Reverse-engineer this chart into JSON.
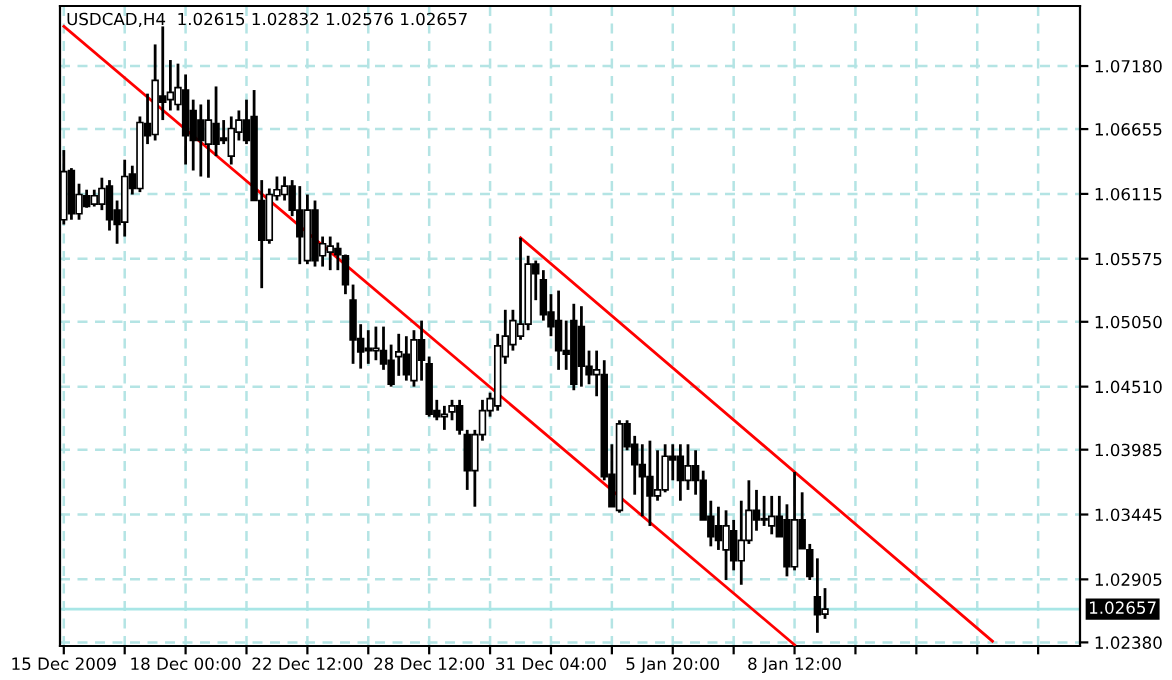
{
  "chart_data": {
    "type": "candlestick",
    "title": "USDCAD,H4  1.02615 1.02832 1.02576 1.02657",
    "categories": [
      "15 Dec 2009",
      null,
      null,
      null,
      null,
      null,
      null,
      null,
      null,
      null,
      null,
      null,
      null,
      null,
      null,
      null,
      "18 Dec 00:00",
      null,
      null,
      null,
      null,
      null,
      null,
      null,
      null,
      null,
      null,
      null,
      null,
      null,
      null,
      null,
      "22 Dec 12:00",
      null,
      null,
      null,
      null,
      null,
      null,
      null,
      null,
      null,
      null,
      null,
      null,
      null,
      null,
      null,
      "28 Dec 12:00",
      null,
      null,
      null,
      null,
      null,
      null,
      null,
      null,
      null,
      null,
      null,
      null,
      null,
      null,
      null,
      "31 Dec 04:00",
      null,
      null,
      null,
      null,
      null,
      null,
      null,
      null,
      null,
      null,
      null,
      null,
      null,
      null,
      null,
      "5 Jan 20:00",
      null,
      null,
      null,
      null,
      null,
      null,
      null,
      null,
      null,
      null,
      null,
      null,
      null,
      null,
      null,
      "8 Jan 12:00",
      null,
      null,
      null,
      null,
      null,
      null,
      null,
      null,
      null,
      null,
      null,
      null,
      null,
      null,
      null,
      null,
      null,
      null,
      null,
      null,
      null,
      null,
      null,
      null,
      null,
      null,
      null,
      null,
      null,
      null,
      null,
      null,
      null,
      null,
      null,
      null,
      null
    ],
    "ohlc": [
      [
        1.059,
        1.0648,
        1.0586,
        1.063
      ],
      [
        1.0631,
        1.0633,
        1.059,
        1.0595
      ],
      [
        1.0595,
        1.062,
        1.059,
        1.0611
      ],
      [
        1.061,
        1.0615,
        1.06,
        1.0601
      ],
      [
        1.0603,
        1.0615,
        1.0601,
        1.061
      ],
      [
        1.0603,
        1.0625,
        1.0598,
        1.0616
      ],
      [
        1.0618,
        1.0623,
        1.0581,
        1.059
      ],
      [
        1.0598,
        1.0606,
        1.057,
        1.0586
      ],
      [
        1.0588,
        1.064,
        1.0576,
        1.0626
      ],
      [
        1.0628,
        1.0635,
        1.0611,
        1.0616
      ],
      [
        1.0616,
        1.0676,
        1.0613,
        1.0671
      ],
      [
        1.067,
        1.0695,
        1.0653,
        1.066
      ],
      [
        1.0661,
        1.0736,
        1.0656,
        1.0706
      ],
      [
        1.0693,
        1.0751,
        1.0673,
        1.0688
      ],
      [
        1.069,
        1.0723,
        1.0681,
        1.0696
      ],
      [
        1.0686,
        1.072,
        1.0681,
        1.07
      ],
      [
        1.0698,
        1.0711,
        1.0636,
        1.066
      ],
      [
        1.0681,
        1.069,
        1.0631,
        1.0656
      ],
      [
        1.0673,
        1.0686,
        1.0626,
        1.0656
      ],
      [
        1.0653,
        1.069,
        1.0625,
        1.0673
      ],
      [
        1.067,
        1.0701,
        1.0643,
        1.0653
      ],
      [
        1.0658,
        1.0673,
        1.0653,
        1.0656
      ],
      [
        1.0643,
        1.0676,
        1.0636,
        1.0666
      ],
      [
        1.0663,
        1.0681,
        1.0656,
        1.0673
      ],
      [
        1.0673,
        1.069,
        1.0653,
        1.0656
      ],
      [
        1.0676,
        1.0698,
        1.0606,
        1.0606
      ],
      [
        1.0606,
        1.0623,
        1.0533,
        1.0573
      ],
      [
        1.0573,
        1.0616,
        1.057,
        1.0611
      ],
      [
        1.061,
        1.0626,
        1.0606,
        1.0615
      ],
      [
        1.0611,
        1.0626,
        1.0606,
        1.0618
      ],
      [
        1.0618,
        1.0623,
        1.0593,
        1.0598
      ],
      [
        1.0598,
        1.0618,
        1.0553,
        1.0576
      ],
      [
        1.0556,
        1.0611,
        1.0553,
        1.0598
      ],
      [
        1.0598,
        1.0606,
        1.0551,
        1.0556
      ],
      [
        1.056,
        1.0576,
        1.0551,
        1.057
      ],
      [
        1.0563,
        1.0576,
        1.0548,
        1.0568
      ],
      [
        1.0566,
        1.0571,
        1.0548,
        1.0561
      ],
      [
        1.056,
        1.0561,
        1.0528,
        1.0536
      ],
      [
        1.0523,
        1.0536,
        1.047,
        1.049
      ],
      [
        1.0491,
        1.0503,
        1.0466,
        1.048
      ],
      [
        1.0483,
        1.0498,
        1.047,
        1.0481
      ],
      [
        1.0481,
        1.0501,
        1.0473,
        1.0483
      ],
      [
        1.0481,
        1.0501,
        1.0465,
        1.047
      ],
      [
        1.0473,
        1.0486,
        1.0451,
        1.0453
      ],
      [
        1.0476,
        1.0495,
        1.046,
        1.048
      ],
      [
        1.0478,
        1.0493,
        1.0456,
        1.0461
      ],
      [
        1.0456,
        1.0498,
        1.0451,
        1.049
      ],
      [
        1.049,
        1.0506,
        1.0456,
        1.0473
      ],
      [
        1.047,
        1.0476,
        1.0426,
        1.0428
      ],
      [
        1.0431,
        1.044,
        1.0423,
        1.0426
      ],
      [
        1.0426,
        1.0435,
        1.0415,
        1.0428
      ],
      [
        1.043,
        1.044,
        1.0423,
        1.0435
      ],
      [
        1.0435,
        1.044,
        1.0411,
        1.0415
      ],
      [
        1.0411,
        1.0415,
        1.0365,
        1.0381
      ],
      [
        1.0381,
        1.0415,
        1.0351,
        1.0411
      ],
      [
        1.0411,
        1.044,
        1.0406,
        1.0431
      ],
      [
        1.0431,
        1.0446,
        1.0426,
        1.0441
      ],
      [
        1.0435,
        1.0495,
        1.0431,
        1.0485
      ],
      [
        1.0476,
        1.0515,
        1.047,
        1.0493
      ],
      [
        1.0486,
        1.0515,
        1.0481,
        1.0506
      ],
      [
        1.0493,
        1.0575,
        1.049,
        1.0503
      ],
      [
        1.0503,
        1.056,
        1.0498,
        1.0553
      ],
      [
        1.0553,
        1.0556,
        1.0523,
        1.0545
      ],
      [
        1.054,
        1.0548,
        1.0506,
        1.0511
      ],
      [
        1.0513,
        1.0528,
        1.0493,
        1.0501
      ],
      [
        1.0506,
        1.0531,
        1.0465,
        1.0481
      ],
      [
        1.0481,
        1.0506,
        1.0465,
        1.0478
      ],
      [
        1.0506,
        1.052,
        1.0448,
        1.0453
      ],
      [
        1.0501,
        1.0518,
        1.0451,
        1.0468
      ],
      [
        1.0468,
        1.0481,
        1.0453,
        1.0461
      ],
      [
        1.0461,
        1.0481,
        1.0443,
        1.0465
      ],
      [
        1.0461,
        1.0473,
        1.0373,
        1.0376
      ],
      [
        1.0378,
        1.0403,
        1.0351,
        1.0351
      ],
      [
        1.0348,
        1.0423,
        1.0346,
        1.042
      ],
      [
        1.042,
        1.0423,
        1.0398,
        1.0401
      ],
      [
        1.0403,
        1.041,
        1.0361,
        1.0386
      ],
      [
        1.0386,
        1.0403,
        1.0343,
        1.0376
      ],
      [
        1.0376,
        1.0406,
        1.0335,
        1.036
      ],
      [
        1.036,
        1.0398,
        1.0356,
        1.0365
      ],
      [
        1.0365,
        1.0403,
        1.0363,
        1.0393
      ],
      [
        1.0393,
        1.0403,
        1.0373,
        1.039
      ],
      [
        1.0393,
        1.0403,
        1.0356,
        1.0373
      ],
      [
        1.0373,
        1.0403,
        1.0365,
        1.0385
      ],
      [
        1.0385,
        1.0398,
        1.0361,
        1.0373
      ],
      [
        1.0373,
        1.0381,
        1.034,
        1.034
      ],
      [
        1.0343,
        1.0356,
        1.0318,
        1.0326
      ],
      [
        1.0335,
        1.0351,
        1.0315,
        1.0323
      ],
      [
        1.0315,
        1.0348,
        1.029,
        1.0335
      ],
      [
        1.0331,
        1.034,
        1.0298,
        1.0306
      ],
      [
        1.0306,
        1.0356,
        1.0286,
        1.0323
      ],
      [
        1.0323,
        1.0373,
        1.032,
        1.0348
      ],
      [
        1.0348,
        1.0365,
        1.0331,
        1.034
      ],
      [
        1.0341,
        1.036,
        1.0335,
        1.034
      ],
      [
        1.0335,
        1.036,
        1.0328,
        1.0343
      ],
      [
        1.0343,
        1.036,
        1.0326,
        1.0326
      ],
      [
        1.034,
        1.0353,
        1.0293,
        1.0301
      ],
      [
        1.0301,
        1.038,
        1.0298,
        1.034
      ],
      [
        1.034,
        1.0363,
        1.0316,
        1.0316
      ],
      [
        1.0315,
        1.032,
        1.029,
        1.0293
      ],
      [
        1.0276,
        1.0308,
        1.0246,
        1.0261
      ],
      [
        1.02615,
        1.02832,
        1.02576,
        1.02657
      ],
      null,
      null,
      null,
      null,
      null,
      null,
      null,
      null,
      null,
      null,
      null,
      null,
      null,
      null,
      null,
      null,
      null,
      null,
      null,
      null,
      null,
      null,
      null,
      null,
      null,
      null,
      null,
      null,
      null,
      null,
      null,
      null,
      null
    ],
    "color": "#000000",
    "series": [
      {
        "type": "line",
        "color": "#ff0000",
        "values": [
          1.0751,
          null,
          null,
          null,
          null,
          null,
          null,
          null,
          null,
          null,
          null,
          null,
          null,
          null,
          null,
          null,
          null,
          null,
          null,
          null,
          null,
          null,
          null,
          null,
          null,
          null,
          null,
          null,
          null,
          null,
          null,
          null,
          null,
          null,
          null,
          null,
          null,
          null,
          null,
          null,
          null,
          null,
          null,
          null,
          null,
          null,
          null,
          null,
          null,
          null,
          null,
          null,
          null,
          null,
          null,
          null,
          null,
          null,
          null,
          null,
          null,
          null,
          null,
          null,
          null,
          null,
          null,
          null,
          null,
          null,
          null,
          null,
          null,
          null,
          null,
          null,
          null,
          null,
          null,
          null,
          null,
          null,
          null,
          null,
          null,
          null,
          null,
          null,
          null,
          null,
          null,
          null,
          null,
          null,
          null,
          null,
          1.0236,
          null,
          null,
          null,
          null,
          null,
          null,
          null,
          null,
          null,
          null,
          null,
          null,
          null,
          null,
          null,
          null,
          null,
          null,
          null,
          null,
          null,
          null,
          null,
          null,
          null,
          null,
          null,
          null,
          null,
          null,
          null,
          null,
          null,
          null,
          null,
          null,
          null
        ]
      },
      {
        "type": "line",
        "color": "#ff0000",
        "values": [
          null,
          null,
          null,
          null,
          null,
          null,
          null,
          null,
          null,
          null,
          null,
          null,
          null,
          null,
          null,
          null,
          null,
          null,
          null,
          null,
          null,
          null,
          null,
          null,
          null,
          null,
          null,
          null,
          null,
          null,
          null,
          null,
          null,
          null,
          null,
          null,
          null,
          null,
          null,
          null,
          null,
          null,
          null,
          null,
          null,
          null,
          null,
          null,
          null,
          null,
          null,
          null,
          null,
          null,
          null,
          null,
          null,
          null,
          null,
          null,
          1.0575,
          null,
          null,
          null,
          null,
          null,
          null,
          null,
          null,
          null,
          null,
          null,
          null,
          null,
          null,
          null,
          null,
          null,
          null,
          null,
          null,
          null,
          null,
          null,
          null,
          null,
          null,
          null,
          null,
          null,
          null,
          null,
          null,
          null,
          null,
          null,
          null,
          null,
          null,
          null,
          null,
          null,
          null,
          null,
          null,
          null,
          null,
          null,
          null,
          null,
          null,
          null,
          null,
          null,
          null,
          null,
          null,
          null,
          null,
          null,
          null,
          null,
          1.0239,
          null,
          null,
          null,
          null,
          null,
          null,
          null,
          null,
          null,
          null,
          null
        ]
      }
    ],
    "ylim": [
      1.0235,
      1.0768
    ],
    "yticks": [
      {
        "value": 1.0718,
        "label": "1.07180"
      },
      {
        "value": 1.06655,
        "label": "1.06655"
      },
      {
        "value": 1.06115,
        "label": "1.06115"
      },
      {
        "value": 1.05575,
        "label": "1.05575"
      },
      {
        "value": 1.0505,
        "label": "1.05050"
      },
      {
        "value": 1.0451,
        "label": "1.04510"
      },
      {
        "value": 1.03985,
        "label": "1.03985"
      },
      {
        "value": 1.03445,
        "label": "1.03445"
      },
      {
        "value": 1.02905,
        "label": "1.02905"
      },
      {
        "value": 1.0238,
        "label": "1.02380"
      }
    ],
    "ref_lines": [
      {
        "axis": "y",
        "value": 1.02657,
        "label": "1.02657",
        "color": "#a8e6e6"
      }
    ],
    "grid": true
  }
}
